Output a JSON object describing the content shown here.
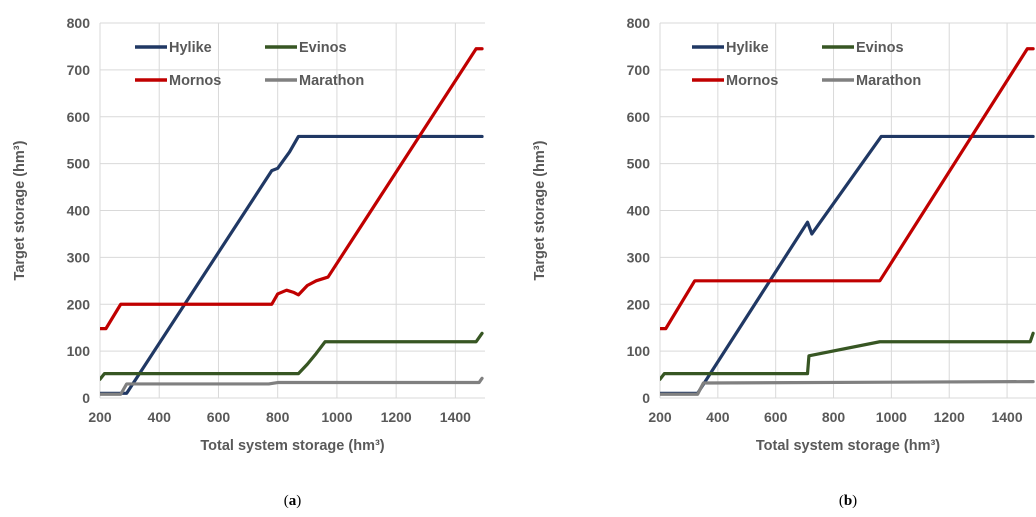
{
  "colors": {
    "Hylike": "#203864",
    "Evinos": "#375623",
    "Mornos": "#c00000",
    "Marathon": "#808080",
    "grid": "#d9d9d9",
    "text": "#595959"
  },
  "chart_data": [
    {
      "type": "line",
      "panel_label_pre": "(",
      "panel_label": "a",
      "panel_label_post": ")",
      "xlabel": "Total system storage (hm³)",
      "ylabel": "Target storage (hm³)",
      "xlim": [
        200,
        1500
      ],
      "ylim": [
        0,
        800
      ],
      "xticks": [
        200,
        400,
        600,
        800,
        1000,
        1200,
        1400
      ],
      "yticks": [
        0,
        100,
        200,
        300,
        400,
        500,
        600,
        700,
        800
      ],
      "grid": true,
      "legend_position": "top-left",
      "series": [
        {
          "name": "Hylike",
          "points": [
            [
              200,
              10
            ],
            [
              290,
              10
            ],
            [
              780,
              485
            ],
            [
              800,
              490
            ],
            [
              840,
              525
            ],
            [
              870,
              558
            ],
            [
              1490,
              558
            ]
          ]
        },
        {
          "name": "Mornos",
          "points": [
            [
              200,
              148
            ],
            [
              220,
              148
            ],
            [
              270,
              200
            ],
            [
              780,
              200
            ],
            [
              800,
              222
            ],
            [
              830,
              230
            ],
            [
              855,
              225
            ],
            [
              870,
              220
            ],
            [
              900,
              240
            ],
            [
              930,
              250
            ],
            [
              970,
              258
            ],
            [
              1470,
              745
            ],
            [
              1490,
              745
            ]
          ]
        },
        {
          "name": "Evinos",
          "points": [
            [
              200,
              40
            ],
            [
              215,
              52
            ],
            [
              870,
              52
            ],
            [
              900,
              72
            ],
            [
              930,
              95
            ],
            [
              960,
              120
            ],
            [
              1470,
              120
            ],
            [
              1490,
              138
            ]
          ]
        },
        {
          "name": "Marathon",
          "points": [
            [
              200,
              8
            ],
            [
              270,
              8
            ],
            [
              290,
              30
            ],
            [
              770,
              30
            ],
            [
              800,
              33
            ],
            [
              1480,
              33
            ],
            [
              1490,
              42
            ]
          ]
        }
      ]
    },
    {
      "type": "line",
      "panel_label_pre": "(",
      "panel_label": "b",
      "panel_label_post": ")",
      "xlabel": "Total system storage (hm³)",
      "ylabel": "Target storage (hm³)",
      "xlim": [
        200,
        1500
      ],
      "ylim": [
        0,
        800
      ],
      "xticks": [
        200,
        400,
        600,
        800,
        1000,
        1200,
        1400
      ],
      "yticks": [
        0,
        100,
        200,
        300,
        400,
        500,
        600,
        700,
        800
      ],
      "grid": true,
      "legend_position": "top-left",
      "series": [
        {
          "name": "Hylike",
          "points": [
            [
              200,
              10
            ],
            [
              330,
              10
            ],
            [
              710,
              375
            ],
            [
              725,
              350
            ],
            [
              965,
              558
            ],
            [
              1490,
              558
            ]
          ]
        },
        {
          "name": "Mornos",
          "points": [
            [
              200,
              148
            ],
            [
              220,
              148
            ],
            [
              320,
              250
            ],
            [
              960,
              250
            ],
            [
              1470,
              745
            ],
            [
              1490,
              745
            ]
          ]
        },
        {
          "name": "Evinos",
          "points": [
            [
              200,
              40
            ],
            [
              215,
              52
            ],
            [
              710,
              52
            ],
            [
              715,
              90
            ],
            [
              960,
              120
            ],
            [
              1480,
              120
            ],
            [
              1490,
              138
            ]
          ]
        },
        {
          "name": "Marathon",
          "points": [
            [
              200,
              8
            ],
            [
              330,
              8
            ],
            [
              350,
              32
            ],
            [
              1490,
              35
            ]
          ]
        }
      ]
    }
  ]
}
